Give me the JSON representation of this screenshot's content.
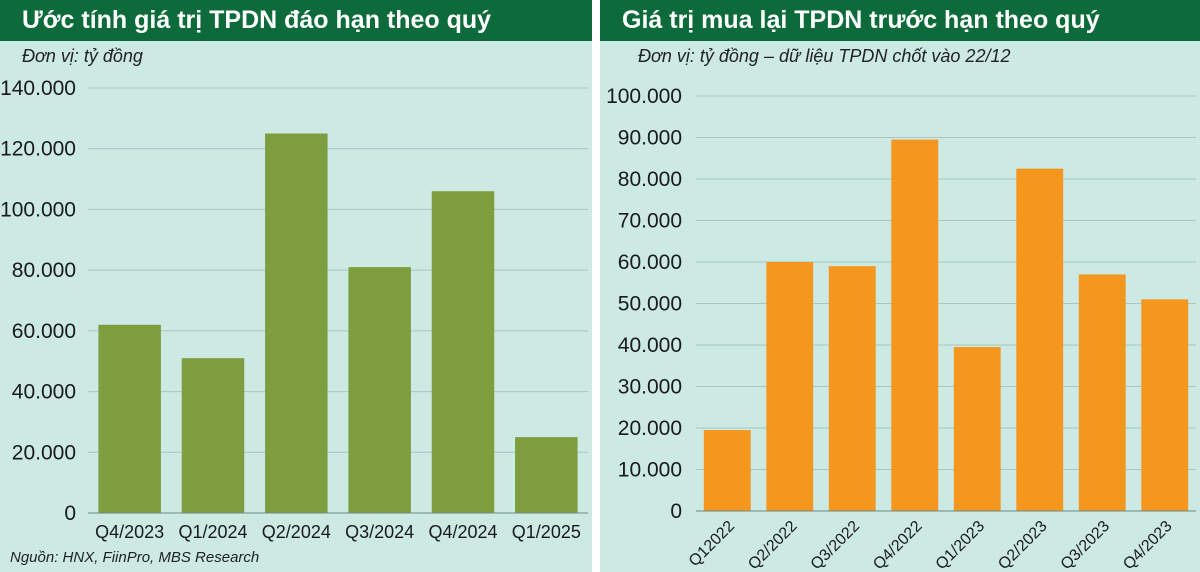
{
  "chart_data": [
    {
      "type": "bar",
      "title": "Ước tính giá trị TPDN đáo hạn theo quý",
      "subtitle": "Đơn vị: tỷ đồng",
      "categories": [
        "Q4/2023",
        "Q1/2024",
        "Q2/2024",
        "Q3/2024",
        "Q4/2024",
        "Q1/2025"
      ],
      "values": [
        62000,
        51000,
        125000,
        81000,
        106000,
        25000
      ],
      "yticks": [
        "0",
        "20.000",
        "40.000",
        "60.000",
        "80.000",
        "100.000",
        "120.000",
        "140.000"
      ],
      "ylim": [
        0,
        140000
      ],
      "bar_color": "#7e9d3e",
      "grid": true
    },
    {
      "type": "bar",
      "title": "Giá trị mua lại TPDN trước hạn theo quý",
      "subtitle": "Đơn vị: tỷ đồng – dữ liệu TPDN chốt vào 22/12",
      "categories": [
        "Q12022",
        "Q2/2022",
        "Q3/2022",
        "Q4/2022",
        "Q1/2023",
        "Q2/2023",
        "Q3/2023",
        "Q4/2023"
      ],
      "values": [
        19500,
        60000,
        59000,
        89500,
        39500,
        82500,
        57000,
        51000
      ],
      "yticks": [
        "0",
        "10.000",
        "20.000",
        "30.000",
        "40.000",
        "50.000",
        "60.000",
        "70.000",
        "80.000",
        "90.000",
        "100.000"
      ],
      "ylim": [
        0,
        100000
      ],
      "bar_color": "#f5961f",
      "grid": true
    }
  ],
  "source": "Nguồn: HNX, FiinPro, MBS Research"
}
